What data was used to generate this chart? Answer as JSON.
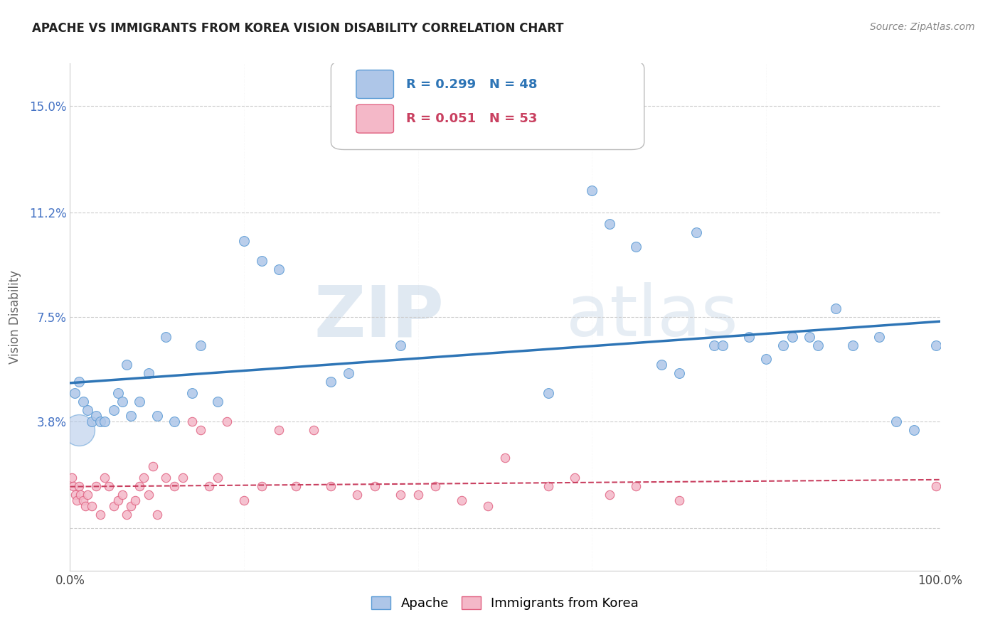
{
  "title": "APACHE VS IMMIGRANTS FROM KOREA VISION DISABILITY CORRELATION CHART",
  "source": "Source: ZipAtlas.com",
  "ylabel": "Vision Disability",
  "watermark_zip": "ZIP",
  "watermark_atlas": "atlas",
  "apache_color": "#aec6e8",
  "apache_edge_color": "#5b9bd5",
  "korea_color": "#f4b8c8",
  "korea_edge_color": "#e06080",
  "apache_line_color": "#2e75b6",
  "korea_line_color": "#c94060",
  "background_color": "#ffffff",
  "grid_color": "#cccccc",
  "ytick_color": "#4472c4",
  "apache_R": 0.299,
  "apache_N": 48,
  "korea_R": 0.051,
  "korea_N": 53,
  "xlim": [
    0,
    100
  ],
  "ylim": [
    -1.5,
    16.5
  ],
  "ytick_vals": [
    0.0,
    3.8,
    7.5,
    11.2,
    15.0
  ],
  "ytick_labels": [
    "",
    "3.8%",
    "7.5%",
    "11.2%",
    "15.0%"
  ],
  "apache_x": [
    0.5,
    1.0,
    1.5,
    2.0,
    2.5,
    3.0,
    3.5,
    4.0,
    5.0,
    5.5,
    6.0,
    6.5,
    7.0,
    8.0,
    9.0,
    10.0,
    11.0,
    12.0,
    14.0,
    15.0,
    17.0,
    20.0,
    22.0,
    24.0,
    30.0,
    32.0,
    38.0,
    55.0,
    60.0,
    62.0,
    65.0,
    68.0,
    70.0,
    72.0,
    74.0,
    75.0,
    78.0,
    80.0,
    82.0,
    83.0,
    85.0,
    86.0,
    88.0,
    90.0,
    93.0,
    95.0,
    97.0,
    99.5
  ],
  "apache_y": [
    4.8,
    5.2,
    4.5,
    4.2,
    3.8,
    4.0,
    3.8,
    3.8,
    4.2,
    4.8,
    4.5,
    5.8,
    4.0,
    4.5,
    5.5,
    4.0,
    6.8,
    3.8,
    4.8,
    6.5,
    4.5,
    10.2,
    9.5,
    9.2,
    5.2,
    5.5,
    6.5,
    4.8,
    12.0,
    10.8,
    10.0,
    5.8,
    5.5,
    10.5,
    6.5,
    6.5,
    6.8,
    6.0,
    6.5,
    6.8,
    6.8,
    6.5,
    7.8,
    6.5,
    6.8,
    3.8,
    3.5,
    6.5
  ],
  "korea_x": [
    0.2,
    0.4,
    0.6,
    0.8,
    1.0,
    1.2,
    1.5,
    1.8,
    2.0,
    2.5,
    3.0,
    3.5,
    4.0,
    4.5,
    5.0,
    5.5,
    6.0,
    6.5,
    7.0,
    7.5,
    8.0,
    8.5,
    9.0,
    9.5,
    10.0,
    11.0,
    12.0,
    13.0,
    14.0,
    15.0,
    16.0,
    17.0,
    18.0,
    20.0,
    22.0,
    24.0,
    26.0,
    28.0,
    30.0,
    33.0,
    35.0,
    38.0,
    40.0,
    42.0,
    45.0,
    48.0,
    50.0,
    55.0,
    58.0,
    62.0,
    65.0,
    70.0,
    99.5
  ],
  "korea_y": [
    1.8,
    1.5,
    1.2,
    1.0,
    1.5,
    1.2,
    1.0,
    0.8,
    1.2,
    0.8,
    1.5,
    0.5,
    1.8,
    1.5,
    0.8,
    1.0,
    1.2,
    0.5,
    0.8,
    1.0,
    1.5,
    1.8,
    1.2,
    2.2,
    0.5,
    1.8,
    1.5,
    1.8,
    3.8,
    3.5,
    1.5,
    1.8,
    3.8,
    1.0,
    1.5,
    3.5,
    1.5,
    3.5,
    1.5,
    1.2,
    1.5,
    1.2,
    1.2,
    1.5,
    1.0,
    0.8,
    2.5,
    1.5,
    1.8,
    1.2,
    1.5,
    1.0,
    1.5
  ],
  "apache_big_x": [
    1.0
  ],
  "apache_big_y": [
    3.5
  ],
  "title_fontsize": 12,
  "source_fontsize": 10,
  "tick_fontsize": 12,
  "ylabel_fontsize": 12
}
